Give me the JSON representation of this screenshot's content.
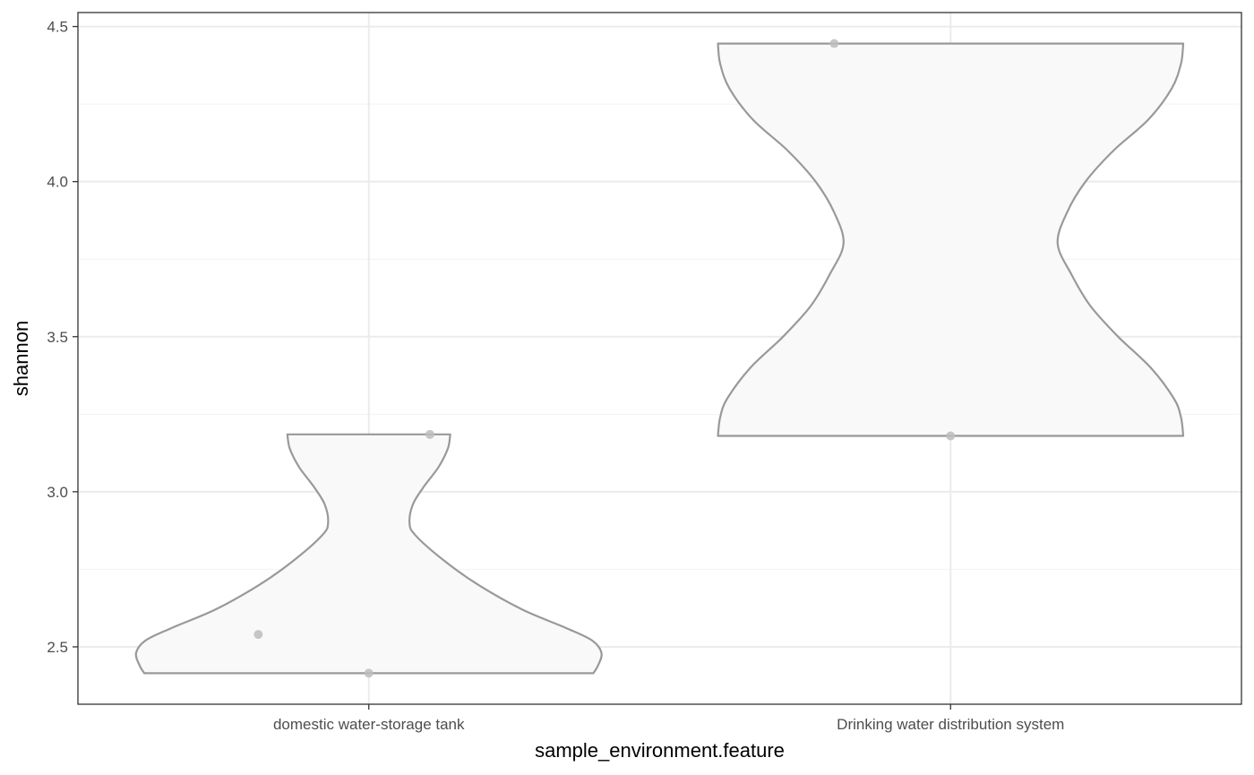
{
  "chart_data": {
    "type": "violin",
    "xlabel": "sample_environment.feature",
    "ylabel": "shannon",
    "ylim": [
      2.315,
      4.545
    ],
    "y_ticks": [
      2.5,
      3.0,
      3.5,
      4.0,
      4.5
    ],
    "y_tick_labels": [
      "2.5",
      "3.0",
      "3.5",
      "4.0",
      "4.5"
    ],
    "grid": true,
    "theme": "bw",
    "colors": {
      "violin_fill": "#f9f9f9",
      "violin_stroke": "#999999",
      "point": "#bdbdbd",
      "grid_major": "#ebebeb",
      "grid_minor": "#f2f2f2",
      "panel_border": "#333333"
    },
    "categories": [
      "domestic water-storage tank",
      "Drinking water distribution system"
    ],
    "violins": [
      {
        "category": "domestic water-storage tank",
        "y_min": 2.415,
        "y_max": 3.185,
        "density_profile": [
          [
            2.415,
            0.965
          ],
          [
            2.44,
            0.985
          ],
          [
            2.48,
            1.0
          ],
          [
            2.52,
            0.96
          ],
          [
            2.56,
            0.85
          ],
          [
            2.62,
            0.66
          ],
          [
            2.7,
            0.47
          ],
          [
            2.78,
            0.32
          ],
          [
            2.86,
            0.2
          ],
          [
            2.9,
            0.175
          ],
          [
            2.96,
            0.19
          ],
          [
            3.02,
            0.24
          ],
          [
            3.08,
            0.3
          ],
          [
            3.14,
            0.34
          ],
          [
            3.185,
            0.35
          ]
        ],
        "points": [
          {
            "x_offset": 0.0,
            "y": 2.415
          },
          {
            "x_offset": -0.19,
            "y": 2.54
          },
          {
            "x_offset": 0.105,
            "y": 3.185
          }
        ]
      },
      {
        "category": "Drinking water distribution system",
        "y_min": 3.18,
        "y_max": 4.445,
        "density_profile": [
          [
            3.18,
            1.0
          ],
          [
            3.24,
            0.99
          ],
          [
            3.3,
            0.96
          ],
          [
            3.4,
            0.86
          ],
          [
            3.5,
            0.72
          ],
          [
            3.6,
            0.6
          ],
          [
            3.7,
            0.52
          ],
          [
            3.8,
            0.46
          ],
          [
            3.9,
            0.5
          ],
          [
            4.0,
            0.58
          ],
          [
            4.1,
            0.7
          ],
          [
            4.2,
            0.85
          ],
          [
            4.3,
            0.95
          ],
          [
            4.38,
            0.99
          ],
          [
            4.445,
            1.0
          ]
        ],
        "points": [
          {
            "x_offset": 0.0,
            "y": 3.18
          },
          {
            "x_offset": -0.2,
            "y": 4.445
          }
        ]
      }
    ]
  }
}
